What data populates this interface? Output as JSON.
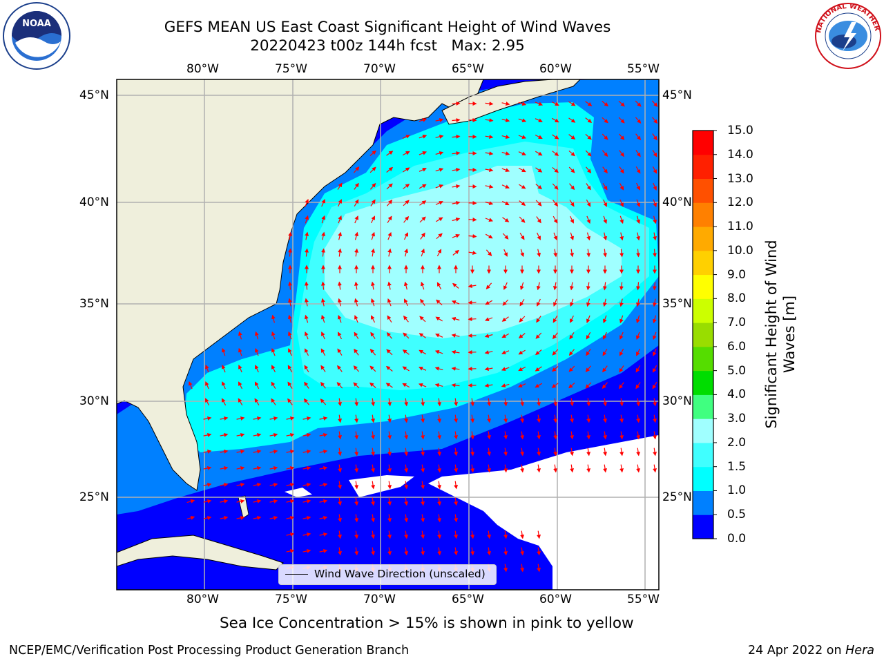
{
  "title": {
    "line1": "GEFS MEAN US East Coast Significant Height of Wind Waves",
    "line2": "20220423 t00z 144h fcst   Max: 2.95"
  },
  "logos": {
    "left": {
      "name": "noaa-logo",
      "text": "NOAA"
    },
    "right": {
      "name": "national-weather-service-logo",
      "text": "NATIONAL WEATHER SERVICE"
    }
  },
  "map": {
    "lon_ticks_top": [
      "80°W",
      "75°W",
      "70°W",
      "65°W",
      "60°W",
      "55°W"
    ],
    "lon_ticks_bottom": [
      "80°W",
      "75°W",
      "70°W",
      "65°W",
      "60°W",
      "55°W"
    ],
    "lat_ticks_left": [
      "45°N",
      "40°N",
      "35°N",
      "30°N",
      "25°N"
    ],
    "lat_ticks_right": [
      "45°N",
      "40°N",
      "35°N",
      "30°N",
      "25°N"
    ],
    "lon_range": [
      -85,
      -54.5
    ],
    "lat_range": [
      20,
      46
    ],
    "land_color": "#efefdc",
    "legend_label": "Wind Wave Direction (unscaled)",
    "arrow_color": "#ff0000"
  },
  "colorbar": {
    "label": "Significant Height of Wind Waves [m]",
    "ticks": [
      "0.0",
      "0.5",
      "1.0",
      "1.5",
      "2.0",
      "3.0",
      "4.0",
      "5.0",
      "6.0",
      "7.0",
      "8.0",
      "9.0",
      "10.0",
      "11.0",
      "12.0",
      "13.0",
      "14.0",
      "15.0"
    ],
    "colors": [
      "#0000ff",
      "#0080ff",
      "#00ffff",
      "#40ffff",
      "#a0ffff",
      "#40ff80",
      "#00dd00",
      "#55dd00",
      "#99dd00",
      "#ccff00",
      "#ffff00",
      "#ffd000",
      "#ffaa00",
      "#ff8000",
      "#ff5000",
      "#ff2000",
      "#ff0000"
    ]
  },
  "footer": {
    "note": "Sea Ice Concentration > 15% is shown in pink to yellow",
    "credit_left": "NCEP/EMC/Verification Post Processing Product Generation Branch",
    "credit_date": "24 Apr 2022 on ",
    "credit_machine": "Hera"
  }
}
